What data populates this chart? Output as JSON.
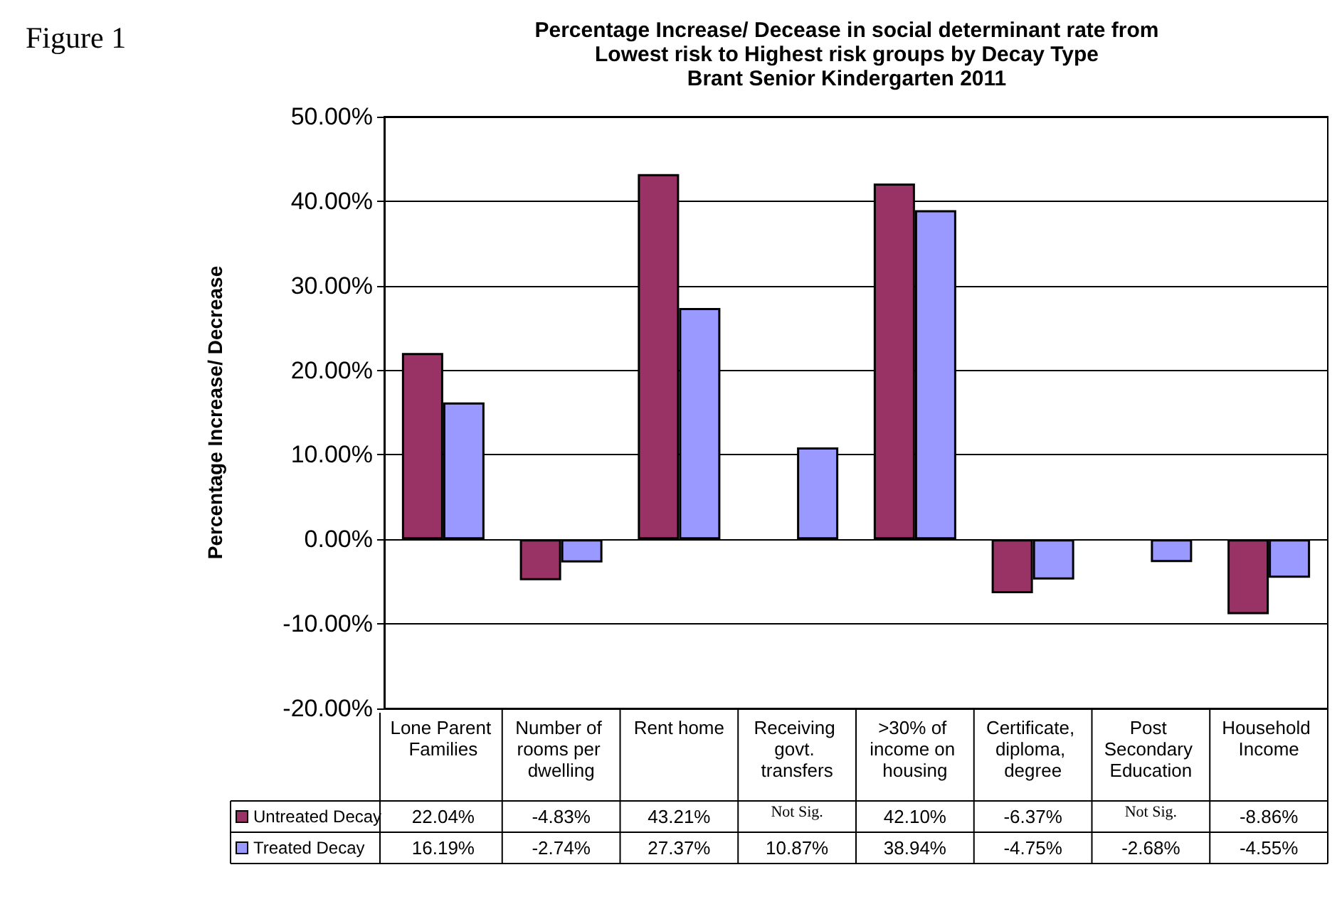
{
  "chart_data": {
    "type": "bar",
    "title": "Percentage Increase/ Decease in social determinant rate from\nLowest risk to Highest risk groups by Decay Type\nBrant Senior Kindergarten 2011",
    "ylabel": "Percentage Increase/ Decrease",
    "annotations": [
      "Figure 1"
    ],
    "categories": [
      "Lone Parent Families",
      "Number of rooms per dwelling",
      "Rent home",
      "Receiving govt. transfers",
      ">30% of income on housing",
      "Certificate, diploma, degree",
      "Post Secondary Education",
      "Household Income"
    ],
    "series": [
      {
        "name": "Untreated Decay",
        "color": "#993366",
        "values": [
          22.04,
          -4.83,
          43.21,
          null,
          42.1,
          -6.37,
          null,
          -8.86
        ],
        "value_labels": [
          "22.04%",
          "-4.83%",
          "43.21%",
          "Not Sig.",
          "42.10%",
          "-6.37%",
          "Not Sig.",
          "-8.86%"
        ]
      },
      {
        "name": "Treated Decay",
        "color": "#9999ff",
        "values": [
          16.19,
          -2.74,
          27.37,
          10.87,
          38.94,
          -4.75,
          -2.68,
          -4.55
        ],
        "value_labels": [
          "16.19%",
          "-2.74%",
          "27.37%",
          "10.87%",
          "38.94%",
          "-4.75%",
          "-2.68%",
          "-4.55%"
        ]
      }
    ],
    "ylim": [
      -20,
      50
    ],
    "yticks": [
      {
        "value": -20,
        "label": "-20.00%"
      },
      {
        "value": -10,
        "label": "-10.00%"
      },
      {
        "value": 0,
        "label": "0.00%"
      },
      {
        "value": 10,
        "label": "10.00%"
      },
      {
        "value": 20,
        "label": "20.00%"
      },
      {
        "value": 30,
        "label": "30.00%"
      },
      {
        "value": 40,
        "label": "40.00%"
      },
      {
        "value": 50,
        "label": "50.00%"
      }
    ],
    "grid": "y",
    "legend": "bottom left"
  }
}
